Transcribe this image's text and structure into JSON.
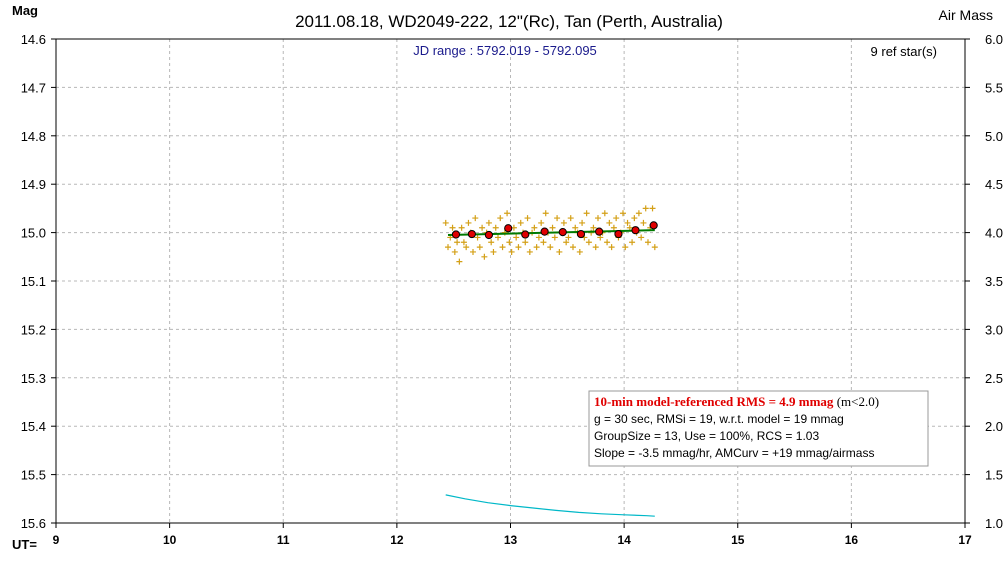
{
  "title": "2011.08.18, WD2049-222, 12\"(Rc), Tan (Perth, Australia)",
  "left_axis_title": "Mag",
  "right_axis_title": "Air Mass",
  "x_axis_title": "UT=",
  "jd_range": "JD range : 5792.019 - 5792.095",
  "ref_stars": "9 ref star(s)",
  "stats_box": {
    "line1_red": "10-min model-referenced RMS = 4.9 mmag",
    "line1_suffix": " (m<2.0)",
    "line2": "g = 30 sec, RMSi = 19, w.r.t. model = 19 mmag",
    "line3": "GroupSize = 13, Use = 100%, RCS = 1.03",
    "line4": "Slope = -3.5 mmag/hr, AMCurv = +19 mmag/airmass"
  },
  "colors": {
    "raw_points": "#d4a017",
    "group_points_fill": "#e00000",
    "model_line": "#007a00",
    "airmass_line": "#00b8c8",
    "grid": "#b8b8b8",
    "stats_border": "#999999"
  },
  "chart_data": {
    "type": "scatter",
    "xlabel": "UT=",
    "ylabel": "Mag",
    "y2label": "Air Mass",
    "xlim": [
      9,
      17
    ],
    "ylim": [
      14.6,
      15.6
    ],
    "y_inverted": true,
    "y2lim": [
      6.0,
      1.0
    ],
    "x_ticks": [
      9,
      10,
      11,
      12,
      13,
      14,
      15,
      16,
      17
    ],
    "y_ticks": [
      14.6,
      14.7,
      14.8,
      14.9,
      15.0,
      15.1,
      15.2,
      15.3,
      15.4,
      15.5,
      15.6
    ],
    "y2_ticks": [
      6.0,
      5.5,
      5.0,
      4.5,
      4.0,
      3.5,
      3.0,
      2.5,
      2.0,
      1.5,
      1.0
    ],
    "x_tick_labels": [
      "9",
      "10",
      "11",
      "12",
      "13",
      "14",
      "15",
      "16",
      "17"
    ],
    "y_tick_labels": [
      "14.6",
      "14.7",
      "14.8",
      "14.9",
      "15.0",
      "15.1",
      "15.2",
      "15.3",
      "15.4",
      "15.5",
      "15.6"
    ],
    "y2_tick_labels": [
      "6.0",
      "5.5",
      "5.0",
      "4.5",
      "4.0",
      "3.5",
      "3.0",
      "2.5",
      "2.0",
      "1.5",
      "1.0"
    ],
    "grid": true,
    "series": [
      {
        "kind": "raw",
        "marker": "+",
        "x": [
          12.43,
          12.45,
          12.47,
          12.49,
          12.51,
          12.53,
          12.55,
          12.57,
          12.59,
          12.61,
          12.63,
          12.65,
          12.67,
          12.69,
          12.71,
          12.73,
          12.75,
          12.77,
          12.79,
          12.81,
          12.83,
          12.85,
          12.87,
          12.89,
          12.91,
          12.93,
          12.95,
          12.97,
          12.99,
          13.01,
          13.03,
          13.05,
          13.07,
          13.09,
          13.11,
          13.13,
          13.15,
          13.17,
          13.19,
          13.21,
          13.23,
          13.25,
          13.27,
          13.29,
          13.31,
          13.33,
          13.35,
          13.37,
          13.39,
          13.41,
          13.43,
          13.45,
          13.47,
          13.49,
          13.51,
          13.53,
          13.55,
          13.57,
          13.59,
          13.61,
          13.63,
          13.65,
          13.67,
          13.69,
          13.71,
          13.73,
          13.75,
          13.77,
          13.79,
          13.81,
          13.83,
          13.85,
          13.87,
          13.89,
          13.91,
          13.93,
          13.95,
          13.97,
          13.99,
          14.01,
          14.03,
          14.05,
          14.07,
          14.09,
          14.11,
          14.13,
          14.15,
          14.17,
          14.19,
          14.21,
          14.23,
          14.25,
          14.27
        ],
        "y": [
          14.98,
          15.03,
          15.01,
          14.99,
          15.04,
          15.02,
          15.06,
          14.99,
          15.02,
          15.03,
          14.98,
          15.0,
          15.04,
          14.97,
          15.01,
          15.03,
          14.99,
          15.05,
          15.0,
          14.98,
          15.02,
          15.04,
          14.99,
          15.01,
          14.97,
          15.03,
          15.0,
          14.96,
          15.02,
          15.04,
          14.99,
          15.01,
          15.03,
          14.98,
          15.0,
          15.02,
          14.97,
          15.04,
          15.0,
          14.99,
          15.03,
          15.01,
          14.98,
          15.02,
          14.96,
          15.0,
          15.03,
          14.99,
          15.01,
          14.97,
          15.04,
          15.0,
          14.98,
          15.02,
          15.01,
          14.97,
          15.03,
          14.99,
          15.0,
          15.04,
          14.98,
          15.01,
          14.96,
          15.02,
          15.0,
          14.99,
          15.03,
          14.97,
          15.01,
          15.0,
          14.96,
          15.02,
          14.98,
          15.03,
          14.99,
          14.97,
          15.01,
          15.0,
          14.96,
          15.03,
          14.98,
          14.99,
          15.02,
          14.97,
          15.0,
          14.96,
          15.01,
          14.98,
          14.95,
          15.02,
          14.99,
          14.95,
          15.03
        ]
      },
      {
        "kind": "grouped",
        "marker": "o",
        "x": [
          12.52,
          12.66,
          12.81,
          12.98,
          13.13,
          13.3,
          13.46,
          13.62,
          13.78,
          13.95,
          14.1,
          14.26
        ],
        "y": [
          15.004,
          15.003,
          15.005,
          14.991,
          15.004,
          14.998,
          14.999,
          15.003,
          14.998,
          15.003,
          14.995,
          14.985
        ]
      },
      {
        "kind": "model",
        "line": true,
        "x": [
          12.45,
          14.27
        ],
        "y": [
          15.005,
          14.995
        ]
      },
      {
        "kind": "airmass",
        "axis": "right",
        "line": true,
        "x": [
          12.43,
          12.6,
          12.8,
          13.0,
          13.2,
          13.4,
          13.6,
          13.8,
          14.0,
          14.2,
          14.27
        ],
        "y": [
          1.29,
          1.25,
          1.21,
          1.18,
          1.155,
          1.13,
          1.11,
          1.095,
          1.085,
          1.075,
          1.07
        ]
      }
    ]
  }
}
